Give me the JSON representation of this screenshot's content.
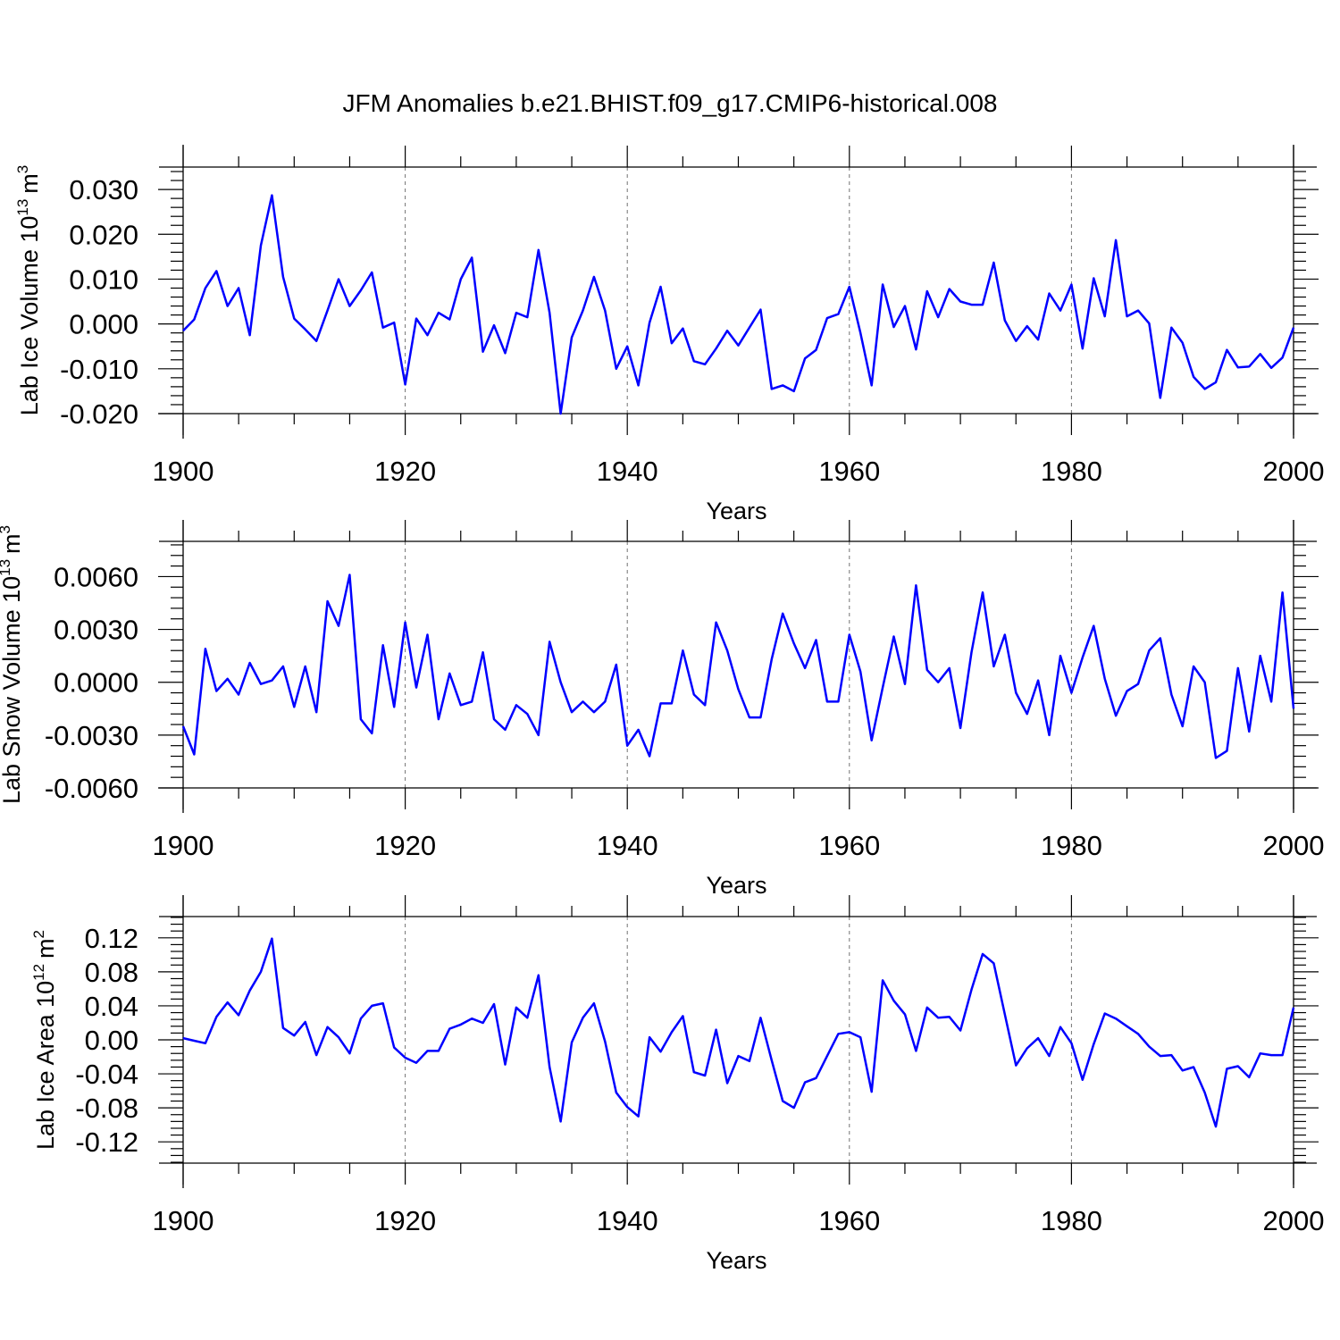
{
  "title": "JFM Anomalies b.e21.BHIST.f09_g17.CMIP6-historical.008",
  "chart_data": [
    {
      "type": "line",
      "xlabel": "Years",
      "ylabel": "Lab Ice Volume 10",
      "ylabel_exp": "13",
      "ylabel_unit": "m",
      "ylabel_unit_exp": "3",
      "xlim": [
        1900,
        2000
      ],
      "ylim": [
        -0.02,
        0.035
      ],
      "xticks": [
        1900,
        1920,
        1940,
        1960,
        1980,
        2000
      ],
      "yticks": [
        -0.02,
        -0.01,
        0.0,
        0.01,
        0.02,
        0.03
      ],
      "ytick_labels": [
        "-0.020",
        "-0.010",
        "0.000",
        "0.010",
        "0.020",
        "0.030"
      ],
      "grid": "dashed vertical at 1920, 1940, 1960, 1980",
      "x_start": 1900,
      "values": [
        -0.0015,
        0.001,
        0.008,
        0.0118,
        0.004,
        0.008,
        -0.0025,
        0.0175,
        0.0287,
        0.0105,
        0.0012,
        -0.0012,
        -0.0038,
        0.003,
        0.01,
        0.004,
        0.0075,
        0.0115,
        -0.0008,
        0.0003,
        -0.0135,
        0.0012,
        -0.0025,
        0.0025,
        0.001,
        0.01,
        0.0148,
        -0.0062,
        -0.0003,
        -0.0065,
        0.0025,
        0.0015,
        0.0165,
        0.0025,
        -0.02,
        -0.003,
        0.003,
        0.0105,
        0.003,
        -0.01,
        -0.005,
        -0.0137,
        0.0003,
        0.0083,
        -0.0043,
        -0.001,
        -0.0083,
        -0.009,
        -0.0055,
        -0.0015,
        -0.0048,
        -0.0008,
        0.0032,
        -0.0145,
        -0.0137,
        -0.015,
        -0.0077,
        -0.0058,
        0.0013,
        0.0022,
        0.0083,
        -0.002,
        -0.0137,
        0.0088,
        -0.0007,
        0.004,
        -0.0057,
        0.0073,
        0.0015,
        0.0078,
        0.005,
        0.0043,
        0.0043,
        0.0137,
        0.0008,
        -0.0038,
        -0.0005,
        -0.0035,
        0.0068,
        0.003,
        0.0088,
        -0.0055,
        0.0102,
        0.0017,
        0.0187,
        0.0017,
        0.003,
        0.0001,
        -0.0165,
        -0.0008,
        -0.0042,
        -0.0118,
        -0.0145,
        -0.013,
        -0.0058,
        -0.0097,
        -0.0095,
        -0.0067,
        -0.0098,
        -0.0075,
        -0.0008
      ]
    },
    {
      "type": "line",
      "xlabel": "Years",
      "ylabel": "Lab Snow Volume 10",
      "ylabel_exp": "13",
      "ylabel_unit": "m",
      "ylabel_unit_exp": "3",
      "xlim": [
        1900,
        2000
      ],
      "ylim": [
        -0.006,
        0.008
      ],
      "xticks": [
        1900,
        1920,
        1940,
        1960,
        1980,
        2000
      ],
      "yticks": [
        -0.006,
        -0.003,
        0.0,
        0.003,
        0.006
      ],
      "ytick_labels": [
        "-0.0060",
        "-0.0030",
        "0.0000",
        "0.0030",
        "0.0060"
      ],
      "grid": "dashed vertical at 1920, 1940, 1960, 1980",
      "x_start": 1900,
      "values": [
        -0.0025,
        -0.0041,
        0.0019,
        -0.0005,
        0.0002,
        -0.0007,
        0.0011,
        -0.0001,
        0.0001,
        0.0009,
        -0.0014,
        0.0009,
        -0.0017,
        0.0046,
        0.0032,
        0.0061,
        -0.0021,
        -0.0029,
        0.0021,
        -0.0014,
        0.0034,
        -0.0003,
        0.0027,
        -0.0021,
        0.0005,
        -0.0013,
        -0.0011,
        0.0017,
        -0.0021,
        -0.0027,
        -0.0013,
        -0.0018,
        -0.003,
        0.0023,
        0.0,
        -0.0017,
        -0.0011,
        -0.0017,
        -0.0011,
        0.001,
        -0.0036,
        -0.0027,
        -0.0042,
        -0.0012,
        -0.0012,
        0.0018,
        -0.0007,
        -0.0013,
        0.0034,
        0.0018,
        -0.0004,
        -0.002,
        -0.002,
        0.0013,
        0.0039,
        0.0022,
        0.0008,
        0.0024,
        -0.0011,
        -0.0011,
        0.0027,
        0.0006,
        -0.0033,
        -0.0003,
        0.0026,
        -0.0001,
        0.0055,
        0.0007,
        0.0,
        0.0008,
        -0.0026,
        0.0017,
        0.0051,
        0.0009,
        0.0027,
        -0.0006,
        -0.0018,
        0.0001,
        -0.003,
        0.0015,
        -0.0006,
        0.0014,
        0.0032,
        0.0002,
        -0.0019,
        -0.0005,
        -0.0001,
        0.0018,
        0.0025,
        -0.0007,
        -0.0025,
        0.0009,
        0.0,
        -0.0043,
        -0.0039,
        0.0008,
        -0.0028,
        0.0015,
        -0.0011,
        0.0051,
        -0.0015
      ]
    },
    {
      "type": "line",
      "xlabel": "Years",
      "ylabel": "Lab Ice Area 10",
      "ylabel_exp": "12",
      "ylabel_unit": "m",
      "ylabel_unit_exp": "2",
      "xlim": [
        1900,
        2000
      ],
      "ylim": [
        -0.145,
        0.145
      ],
      "xticks": [
        1900,
        1920,
        1940,
        1960,
        1980,
        2000
      ],
      "yticks": [
        -0.12,
        -0.08,
        -0.04,
        0.0,
        0.04,
        0.08,
        0.12
      ],
      "ytick_labels": [
        "-0.12",
        "-0.08",
        "-0.04",
        "0.00",
        "0.04",
        "0.08",
        "0.12"
      ],
      "grid": "dashed vertical at 1920, 1940, 1960, 1980",
      "x_start": 1900,
      "values": [
        0.002,
        -0.001,
        -0.004,
        0.027,
        0.044,
        0.029,
        0.058,
        0.08,
        0.119,
        0.014,
        0.005,
        0.021,
        -0.018,
        0.015,
        0.003,
        -0.016,
        0.025,
        0.04,
        0.043,
        -0.009,
        -0.021,
        -0.027,
        -0.013,
        -0.013,
        0.013,
        0.018,
        0.025,
        0.02,
        0.042,
        -0.029,
        0.038,
        0.026,
        0.076,
        -0.032,
        -0.096,
        -0.003,
        0.026,
        0.043,
        -0.002,
        -0.062,
        -0.079,
        -0.09,
        0.003,
        -0.014,
        0.009,
        0.028,
        -0.038,
        -0.042,
        0.012,
        -0.051,
        -0.019,
        -0.025,
        0.026,
        -0.024,
        -0.072,
        -0.08,
        -0.05,
        -0.045,
        -0.019,
        0.007,
        0.009,
        0.003,
        -0.061,
        0.07,
        0.046,
        0.03,
        -0.013,
        0.038,
        0.026,
        0.027,
        0.011,
        0.059,
        0.101,
        0.09,
        0.03,
        -0.03,
        -0.01,
        0.002,
        -0.019,
        0.015,
        -0.004,
        -0.047,
        -0.005,
        0.031,
        0.025,
        0.016,
        0.007,
        -0.008,
        -0.019,
        -0.018,
        -0.036,
        -0.032,
        -0.062,
        -0.102,
        -0.034,
        -0.031,
        -0.044,
        -0.016,
        -0.018,
        -0.018,
        0.038
      ]
    }
  ]
}
